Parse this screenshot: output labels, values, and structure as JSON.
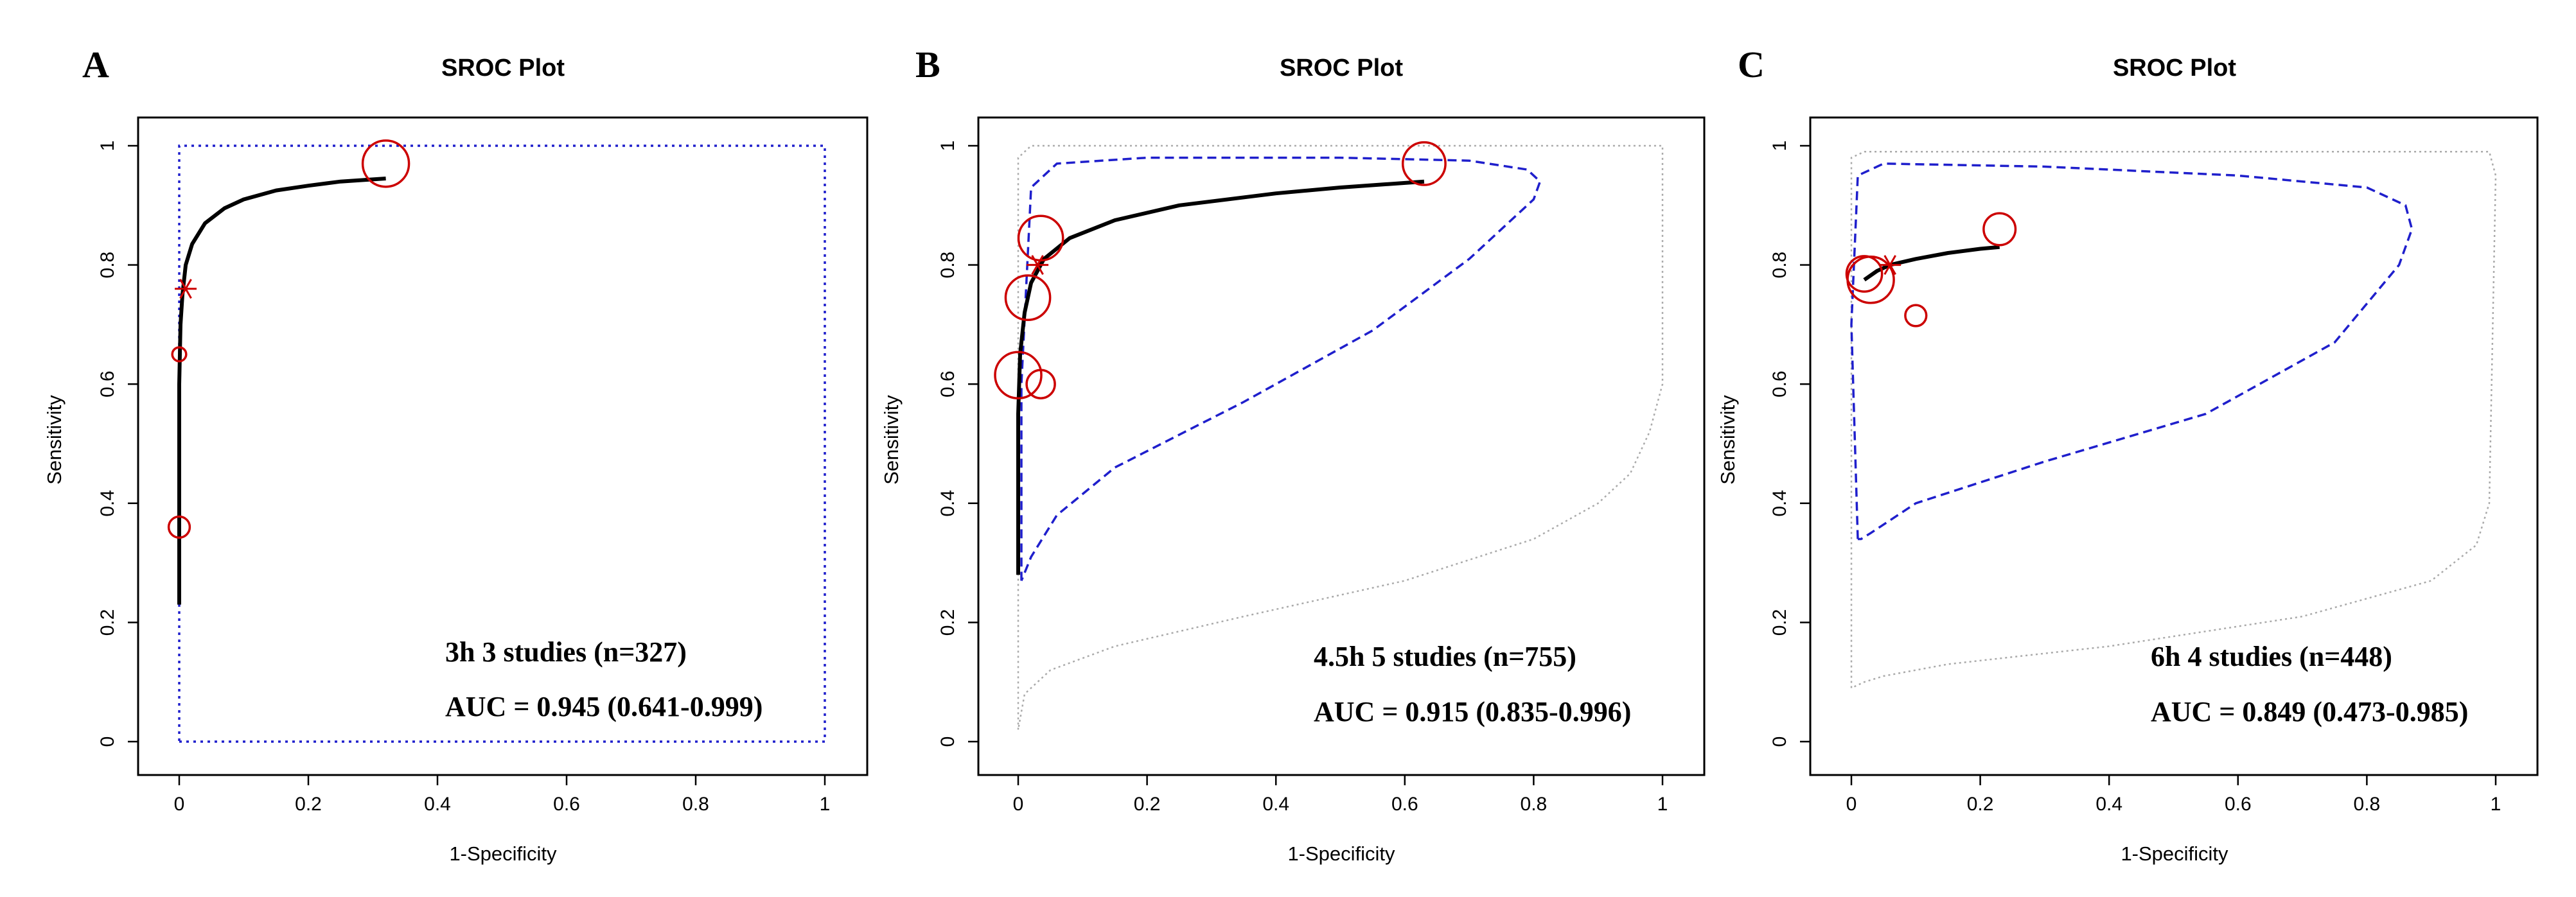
{
  "chart_data": [
    {
      "type": "scatter",
      "panel_label": "A",
      "title": "SROC Plot",
      "xlabel": "1-Specificity",
      "ylabel": "Sensitivity",
      "xlim": [
        0,
        1
      ],
      "ylim": [
        0,
        1
      ],
      "x_ticks": [
        "0",
        "0.2",
        "0.4",
        "0.6",
        "0.8",
        "1"
      ],
      "y_ticks": [
        "0",
        "0.2",
        "0.4",
        "0.6",
        "0.8",
        "1"
      ],
      "annotations": [
        "3h  3 studies (n=327)",
        "AUC = 0.945 (0.641-0.999)"
      ],
      "colors": {
        "curve": "#000000",
        "studies": "#cc0000",
        "confidence": "#1f1fcc",
        "prediction": "#aaaaaa"
      },
      "studies": [
        {
          "x": 0.32,
          "y": 0.97,
          "weight": 1.0
        },
        {
          "x": 0.0,
          "y": 0.65,
          "weight": 0.1
        },
        {
          "x": 0.0,
          "y": 0.36,
          "weight": 0.3
        }
      ],
      "summary_point": {
        "x": 0.01,
        "y": 0.76
      },
      "sroc_curve": {
        "x": [
          0.0,
          0.0,
          0.002,
          0.005,
          0.01,
          0.02,
          0.04,
          0.07,
          0.1,
          0.15,
          0.2,
          0.25,
          0.32
        ],
        "y": [
          0.23,
          0.6,
          0.7,
          0.75,
          0.8,
          0.835,
          0.87,
          0.895,
          0.91,
          0.925,
          0.933,
          0.94,
          0.945
        ]
      },
      "confidence_region": {
        "x": [
          0.0,
          1.0,
          1.0,
          0.0,
          0.0
        ],
        "y": [
          0.0,
          0.0,
          1.0,
          1.0,
          0.0
        ]
      },
      "prediction_region": null
    },
    {
      "type": "scatter",
      "panel_label": "B",
      "title": "SROC Plot",
      "xlabel": "1-Specificity",
      "ylabel": "Sensitivity",
      "xlim": [
        0,
        1
      ],
      "ylim": [
        0,
        1
      ],
      "x_ticks": [
        "0",
        "0.2",
        "0.4",
        "0.6",
        "0.8",
        "1"
      ],
      "y_ticks": [
        "0",
        "0.2",
        "0.4",
        "0.6",
        "0.8",
        "1"
      ],
      "annotations": [
        "4.5h  5 studies (n=755)",
        "AUC = 0.915 (0.835-0.996)"
      ],
      "colors": {
        "curve": "#000000",
        "studies": "#cc0000",
        "confidence": "#1f1fcc",
        "prediction": "#aaaaaa"
      },
      "studies": [
        {
          "x": 0.63,
          "y": 0.97,
          "weight": 0.9
        },
        {
          "x": 0.035,
          "y": 0.845,
          "weight": 0.95
        },
        {
          "x": 0.015,
          "y": 0.745,
          "weight": 0.95
        },
        {
          "x": 0.0,
          "y": 0.615,
          "weight": 1.0
        },
        {
          "x": 0.035,
          "y": 0.6,
          "weight": 0.5
        }
      ],
      "summary_point": {
        "x": 0.03,
        "y": 0.8
      },
      "sroc_curve": {
        "x": [
          0.0,
          0.0,
          0.003,
          0.01,
          0.02,
          0.04,
          0.08,
          0.15,
          0.25,
          0.4,
          0.5,
          0.63
        ],
        "y": [
          0.28,
          0.55,
          0.65,
          0.72,
          0.77,
          0.81,
          0.845,
          0.875,
          0.9,
          0.92,
          0.93,
          0.94
        ]
      },
      "confidence_region": {
        "x": [
          0.005,
          0.005,
          0.02,
          0.06,
          0.2,
          0.5,
          0.7,
          0.79,
          0.81,
          0.8,
          0.7,
          0.55,
          0.35,
          0.15,
          0.06,
          0.02,
          0.005
        ],
        "y": [
          0.27,
          0.6,
          0.93,
          0.97,
          0.98,
          0.98,
          0.975,
          0.96,
          0.94,
          0.91,
          0.81,
          0.69,
          0.57,
          0.46,
          0.38,
          0.31,
          0.27
        ]
      },
      "prediction_region": {
        "x": [
          0.0,
          0.0,
          0.02,
          1.0,
          1.0,
          0.98,
          0.95,
          0.9,
          0.8,
          0.6,
          0.35,
          0.15,
          0.05,
          0.01,
          0.0
        ],
        "y": [
          0.02,
          0.98,
          1.0,
          1.0,
          0.6,
          0.52,
          0.45,
          0.4,
          0.34,
          0.27,
          0.21,
          0.16,
          0.12,
          0.08,
          0.02
        ]
      }
    },
    {
      "type": "scatter",
      "panel_label": "C",
      "title": "SROC Plot",
      "xlabel": "1-Specificity",
      "ylabel": "Sensitivity",
      "xlim": [
        0,
        1
      ],
      "ylim": [
        0,
        1
      ],
      "x_ticks": [
        "0",
        "0.2",
        "0.4",
        "0.6",
        "0.8",
        "1"
      ],
      "y_ticks": [
        "0",
        "0.2",
        "0.4",
        "0.6",
        "0.8",
        "1"
      ],
      "annotations": [
        "6h  4 studies (n=448)",
        "AUC = 0.849 (0.473-0.985)"
      ],
      "colors": {
        "curve": "#000000",
        "studies": "#cc0000",
        "confidence": "#1f1fcc",
        "prediction": "#aaaaaa"
      },
      "studies": [
        {
          "x": 0.23,
          "y": 0.86,
          "weight": 0.6
        },
        {
          "x": 0.02,
          "y": 0.785,
          "weight": 0.7
        },
        {
          "x": 0.03,
          "y": 0.775,
          "weight": 1.0
        },
        {
          "x": 0.1,
          "y": 0.715,
          "weight": 0.3
        }
      ],
      "summary_point": {
        "x": 0.06,
        "y": 0.8
      },
      "sroc_curve": {
        "x": [
          0.02,
          0.04,
          0.06,
          0.1,
          0.15,
          0.2,
          0.23
        ],
        "y": [
          0.775,
          0.79,
          0.8,
          0.81,
          0.82,
          0.827,
          0.83
        ]
      },
      "confidence_region": {
        "x": [
          0.01,
          0.0,
          0.01,
          0.05,
          0.3,
          0.6,
          0.8,
          0.86,
          0.87,
          0.85,
          0.75,
          0.55,
          0.3,
          0.1,
          0.03,
          0.015,
          0.01
        ],
        "y": [
          0.34,
          0.7,
          0.95,
          0.97,
          0.965,
          0.95,
          0.93,
          0.9,
          0.86,
          0.8,
          0.67,
          0.55,
          0.47,
          0.4,
          0.35,
          0.34,
          0.34
        ]
      },
      "prediction_region": {
        "x": [
          0.0,
          0.0,
          0.02,
          0.99,
          1.0,
          0.99,
          0.97,
          0.9,
          0.7,
          0.4,
          0.15,
          0.05,
          0.02,
          0.0
        ],
        "y": [
          0.09,
          0.98,
          0.99,
          0.99,
          0.95,
          0.4,
          0.33,
          0.27,
          0.21,
          0.16,
          0.13,
          0.11,
          0.1,
          0.09
        ]
      }
    }
  ]
}
